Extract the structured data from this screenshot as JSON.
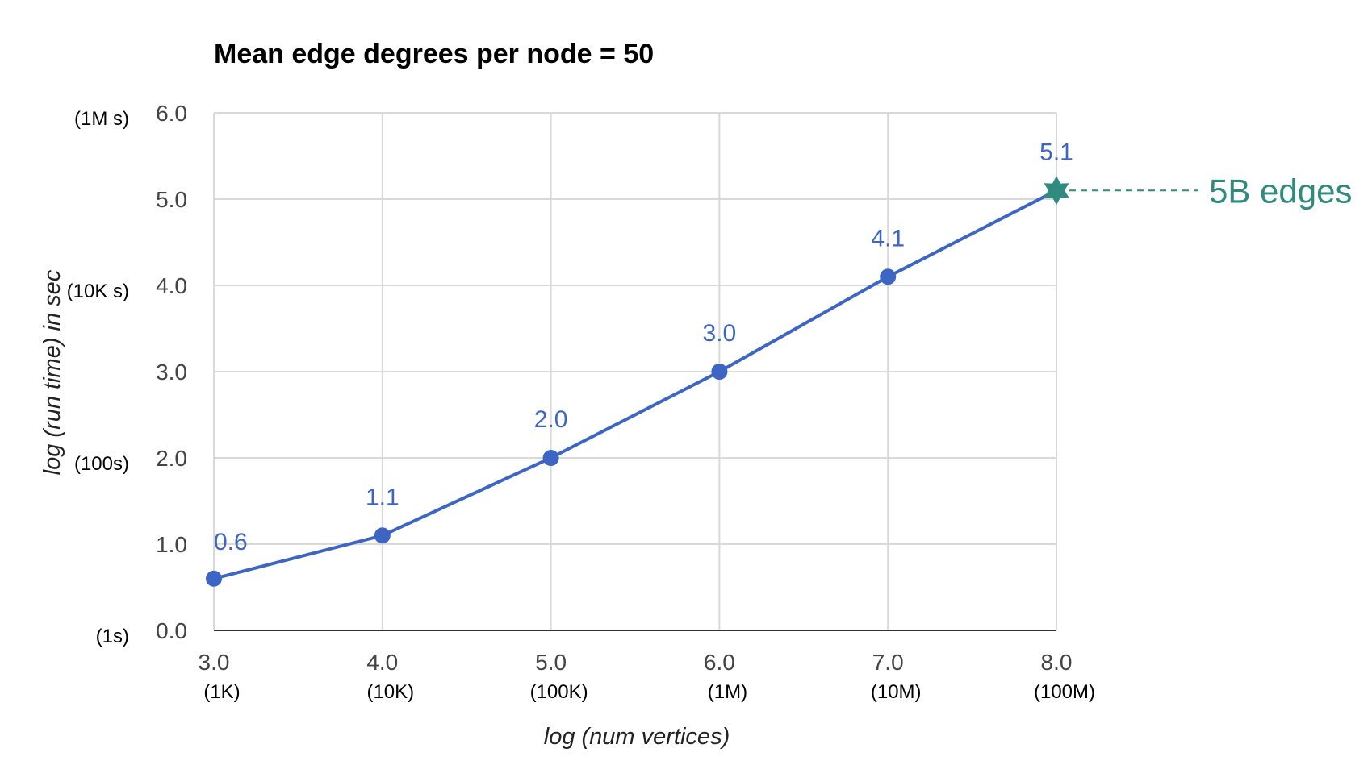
{
  "chart_data": {
    "type": "line",
    "title": "Mean edge degrees per node = 50",
    "xlabel": "log (num vertices)",
    "ylabel": "log (run time) in sec",
    "x": [
      3.0,
      4.0,
      5.0,
      6.0,
      7.0,
      8.0
    ],
    "series": [
      {
        "values": [
          0.6,
          1.1,
          2.0,
          3.0,
          4.1,
          5.1
        ],
        "data_labels": [
          "0.6",
          "1.1",
          "2.0",
          "3.0",
          "4.1",
          "5.1"
        ],
        "color": "#3d66c4"
      }
    ],
    "xlim": [
      3.0,
      8.0
    ],
    "ylim": [
      0.0,
      6.0
    ],
    "x_ticks": [
      {
        "value": 3.0,
        "label": "3.0",
        "sublabel": "(1K)"
      },
      {
        "value": 4.0,
        "label": "4.0",
        "sublabel": "(10K)"
      },
      {
        "value": 5.0,
        "label": "5.0",
        "sublabel": "(100K)"
      },
      {
        "value": 6.0,
        "label": "6.0",
        "sublabel": "(1M)"
      },
      {
        "value": 7.0,
        "label": "7.0",
        "sublabel": "(10M)"
      },
      {
        "value": 8.0,
        "label": "8.0",
        "sublabel": "(100M)"
      }
    ],
    "y_ticks": [
      {
        "value": 0.0,
        "label": "0.0"
      },
      {
        "value": 1.0,
        "label": "1.0"
      },
      {
        "value": 2.0,
        "label": "2.0"
      },
      {
        "value": 3.0,
        "label": "3.0"
      },
      {
        "value": 4.0,
        "label": "4.0"
      },
      {
        "value": 5.0,
        "label": "5.0"
      },
      {
        "value": 6.0,
        "label": "6.0"
      }
    ],
    "y_extra_labels": [
      {
        "value": 0.0,
        "label": "(1s)"
      },
      {
        "value": 2.0,
        "label": "(100s)"
      },
      {
        "value": 4.0,
        "label": "(10K s)"
      },
      {
        "value": 6.0,
        "label": "(1M s)"
      }
    ],
    "grid": true,
    "annotation": {
      "text": "5B edges",
      "x": 8.0,
      "y": 5.1,
      "marker": "star-icon",
      "color": "#2e8b7d"
    }
  }
}
